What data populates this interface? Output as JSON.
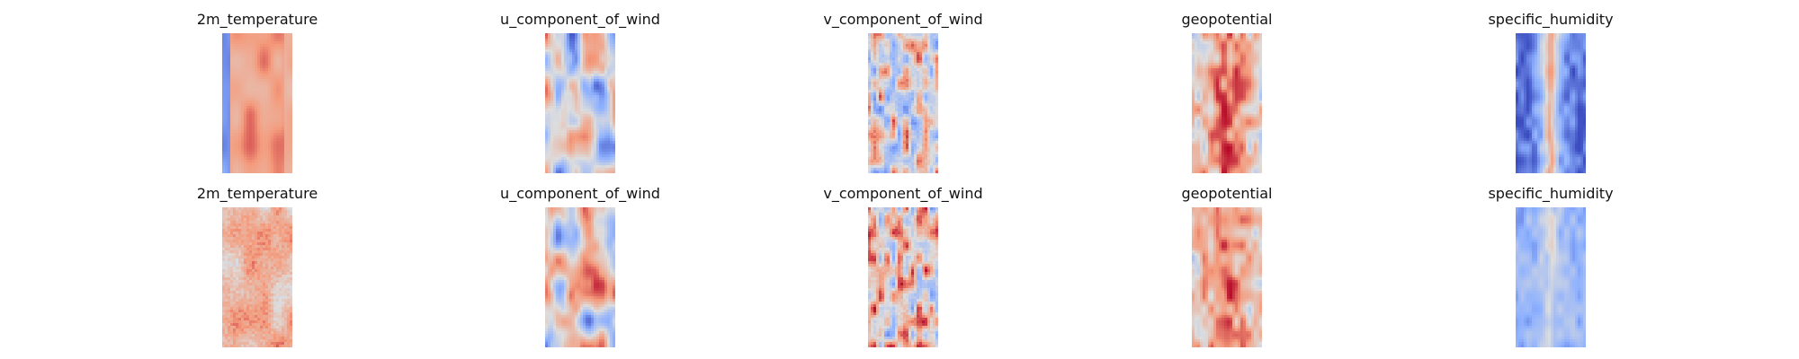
{
  "chart_data": {
    "type": "heatmap",
    "colormap": "coolwarm",
    "axes_visible": false,
    "grid": false,
    "legend": "none",
    "rows": 2,
    "columns": 5,
    "panels": [
      {
        "row": 1,
        "title": "2m_temperature",
        "pattern": "warm_band_cold_left_edge",
        "seed": 1
      },
      {
        "row": 1,
        "title": "u_component_of_wind",
        "pattern": "neutral_mixed",
        "seed": 2
      },
      {
        "row": 1,
        "title": "v_component_of_wind",
        "pattern": "neutral_speckled",
        "seed": 3
      },
      {
        "row": 1,
        "title": "geopotential",
        "pattern": "warm_center_blue_spots",
        "seed": 4
      },
      {
        "row": 1,
        "title": "specific_humidity",
        "pattern": "cold_with_warm_center_streak",
        "seed": 5
      },
      {
        "row": 2,
        "title": "2m_temperature",
        "pattern": "warm_noisy",
        "seed": 6
      },
      {
        "row": 2,
        "title": "u_component_of_wind",
        "pattern": "neutral_mixed",
        "seed": 7
      },
      {
        "row": 2,
        "title": "v_component_of_wind",
        "pattern": "neutral_speckled_warm",
        "seed": 8
      },
      {
        "row": 2,
        "title": "geopotential",
        "pattern": "warm_center_blue_spots",
        "seed": 9
      },
      {
        "row": 2,
        "title": "specific_humidity",
        "pattern": "light_blue_with_warm_center",
        "seed": 10
      }
    ]
  }
}
